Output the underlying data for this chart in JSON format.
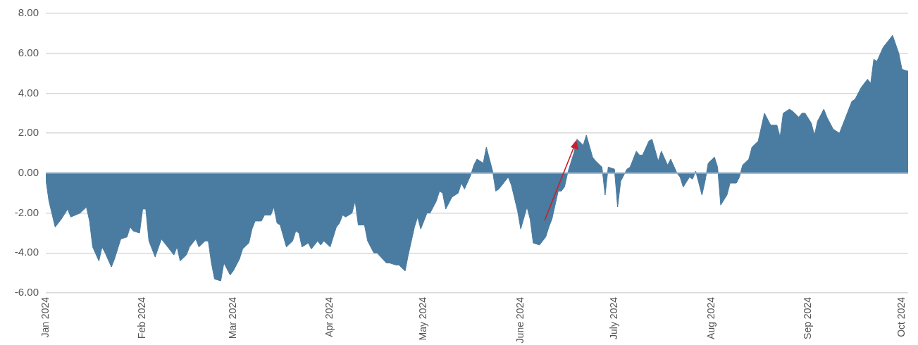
{
  "chart_data": {
    "type": "area",
    "color": "#4a7ba0",
    "x": [
      "2024-01-01",
      "2024-01-02",
      "2024-01-04",
      "2024-01-06",
      "2024-01-08",
      "2024-01-09",
      "2024-01-12",
      "2024-01-14",
      "2024-01-15",
      "2024-01-16",
      "2024-01-18",
      "2024-01-19",
      "2024-01-20",
      "2024-01-22",
      "2024-01-23",
      "2024-01-25",
      "2024-01-27",
      "2024-01-28",
      "2024-01-29",
      "2024-01-31",
      "2024-02-01",
      "2024-02-02",
      "2024-02-03",
      "2024-02-05",
      "2024-02-07",
      "2024-02-08",
      "2024-02-11",
      "2024-02-12",
      "2024-02-13",
      "2024-02-15",
      "2024-02-16",
      "2024-02-18",
      "2024-02-19",
      "2024-02-21",
      "2024-02-22",
      "2024-02-23",
      "2024-02-24",
      "2024-02-26",
      "2024-02-27",
      "2024-02-29",
      "2024-03-01",
      "2024-03-03",
      "2024-03-04",
      "2024-03-06",
      "2024-03-07",
      "2024-03-08",
      "2024-03-10",
      "2024-03-11",
      "2024-03-13",
      "2024-03-14",
      "2024-03-15",
      "2024-03-16",
      "2024-03-18",
      "2024-03-20",
      "2024-03-21",
      "2024-03-22",
      "2024-03-23",
      "2024-03-25",
      "2024-03-26",
      "2024-03-28",
      "2024-03-29",
      "2024-03-30",
      "2024-04-01",
      "2024-04-03",
      "2024-04-04",
      "2024-04-05",
      "2024-04-06",
      "2024-04-08",
      "2024-04-09",
      "2024-04-10",
      "2024-04-12",
      "2024-04-13",
      "2024-04-15",
      "2024-04-16",
      "2024-04-19",
      "2024-04-20",
      "2024-04-22",
      "2024-04-23",
      "2024-04-25",
      "2024-04-26",
      "2024-04-28",
      "2024-04-29",
      "2024-04-30",
      "2024-05-02",
      "2024-05-03",
      "2024-05-05",
      "2024-05-06",
      "2024-05-07",
      "2024-05-08",
      "2024-05-10",
      "2024-05-12",
      "2024-05-13",
      "2024-05-14",
      "2024-05-16",
      "2024-05-17",
      "2024-05-18",
      "2024-05-20",
      "2024-05-21",
      "2024-05-23",
      "2024-05-24",
      "2024-05-25",
      "2024-05-27",
      "2024-05-28",
      "2024-05-29",
      "2024-05-31",
      "2024-06-01",
      "2024-06-03",
      "2024-06-04",
      "2024-06-05",
      "2024-06-07",
      "2024-06-09",
      "2024-06-10",
      "2024-06-11",
      "2024-06-13",
      "2024-06-14",
      "2024-06-15",
      "2024-06-16",
      "2024-06-18",
      "2024-06-19",
      "2024-06-21",
      "2024-06-22",
      "2024-06-24",
      "2024-06-25",
      "2024-06-27",
      "2024-06-28",
      "2024-06-29",
      "2024-07-01",
      "2024-07-02",
      "2024-07-03",
      "2024-07-05",
      "2024-07-06",
      "2024-07-08",
      "2024-07-09",
      "2024-07-10",
      "2024-07-12",
      "2024-07-13",
      "2024-07-15",
      "2024-07-16",
      "2024-07-18",
      "2024-07-19",
      "2024-07-21",
      "2024-07-22",
      "2024-07-23",
      "2024-07-25",
      "2024-07-26",
      "2024-07-27",
      "2024-07-29",
      "2024-07-30",
      "2024-07-31",
      "2024-08-02",
      "2024-08-03",
      "2024-08-04",
      "2024-08-06",
      "2024-08-07",
      "2024-08-09",
      "2024-08-10",
      "2024-08-11",
      "2024-08-13",
      "2024-08-14",
      "2024-08-16",
      "2024-08-18",
      "2024-08-20",
      "2024-08-22",
      "2024-08-23",
      "2024-08-24",
      "2024-08-26",
      "2024-08-27",
      "2024-08-29",
      "2024-08-30",
      "2024-08-31",
      "2024-09-02",
      "2024-09-03",
      "2024-09-04",
      "2024-09-06",
      "2024-09-07",
      "2024-09-09",
      "2024-09-11",
      "2024-09-12",
      "2024-09-14",
      "2024-09-15",
      "2024-09-16",
      "2024-09-18",
      "2024-09-20",
      "2024-09-21",
      "2024-09-22",
      "2024-09-23",
      "2024-09-25",
      "2024-09-26",
      "2024-09-28",
      "2024-09-30",
      "2024-10-01",
      "2024-10-03"
    ],
    "values": [
      -0.3,
      -1.4,
      -2.7,
      -2.3,
      -1.8,
      -2.2,
      -2.0,
      -1.7,
      -2.4,
      -3.7,
      -4.4,
      -3.7,
      -4.0,
      -4.7,
      -4.3,
      -3.3,
      -3.2,
      -2.7,
      -2.9,
      -3.0,
      -1.8,
      -1.8,
      -3.4,
      -4.2,
      -3.3,
      -3.5,
      -4.1,
      -3.7,
      -4.4,
      -4.1,
      -3.7,
      -3.3,
      -3.7,
      -3.4,
      -3.4,
      -4.5,
      -5.3,
      -5.4,
      -4.5,
      -5.1,
      -4.9,
      -4.3,
      -3.8,
      -3.5,
      -2.8,
      -2.4,
      -2.4,
      -2.1,
      -2.1,
      -1.7,
      -2.5,
      -2.6,
      -3.7,
      -3.4,
      -2.9,
      -3.0,
      -3.7,
      -3.5,
      -3.8,
      -3.4,
      -3.6,
      -3.4,
      -3.7,
      -2.7,
      -2.5,
      -2.1,
      -2.2,
      -2.0,
      -1.4,
      -2.6,
      -2.6,
      -3.4,
      -4.0,
      -4.0,
      -4.5,
      -4.5,
      -4.6,
      -4.6,
      -4.9,
      -4.1,
      -2.7,
      -2.2,
      -2.8,
      -2.0,
      -2.0,
      -1.4,
      -0.9,
      -1.0,
      -1.8,
      -1.2,
      -1.0,
      -0.5,
      -0.8,
      -0.1,
      0.4,
      0.7,
      0.5,
      1.3,
      0.1,
      -0.9,
      -0.8,
      -0.4,
      -0.2,
      -0.6,
      -1.9,
      -2.8,
      -1.7,
      -2.3,
      -3.5,
      -3.6,
      -3.2,
      -2.7,
      -2.3,
      -0.9,
      -0.9,
      -0.7,
      0.0,
      1.0,
      1.7,
      1.4,
      1.9,
      0.8,
      0.6,
      0.3,
      -1.1,
      0.3,
      0.2,
      -1.7,
      -0.4,
      0.2,
      0.3,
      1.1,
      0.9,
      0.9,
      1.6,
      1.7,
      0.6,
      1.1,
      0.4,
      0.7,
      0.0,
      -0.2,
      -0.7,
      -0.2,
      -0.3,
      0.1,
      -1.1,
      -0.4,
      0.5,
      0.8,
      0.3,
      -1.6,
      -1.1,
      -0.5,
      -0.5,
      -0.2,
      0.4,
      0.7,
      1.3,
      1.6,
      3.0,
      2.4,
      2.4,
      1.8,
      3.0,
      3.2,
      3.1,
      2.8,
      3.0,
      3.0,
      2.5,
      1.9,
      2.6,
      3.2,
      2.8,
      2.2,
      2.0,
      2.4,
      3.2,
      3.6,
      3.7,
      4.3,
      4.7,
      4.5,
      5.7,
      5.6,
      6.3,
      6.5,
      6.9,
      6.0,
      5.2,
      5.1
    ],
    "xlim": [
      "2024-01-01",
      "2024-10-03"
    ],
    "xticks": [
      {
        "value": "2024-01-01",
        "label": "Jan 2024"
      },
      {
        "value": "2024-02-01",
        "label": "Feb 2024"
      },
      {
        "value": "2024-03-01",
        "label": "Mar 2024"
      },
      {
        "value": "2024-04-01",
        "label": "Apr 2024"
      },
      {
        "value": "2024-05-01",
        "label": "May 2024"
      },
      {
        "value": "2024-06-01",
        "label": "June 2024"
      },
      {
        "value": "2024-07-01",
        "label": "July 2024"
      },
      {
        "value": "2024-08-01",
        "label": "Aug 2024"
      },
      {
        "value": "2024-09-01",
        "label": "Sep 2024"
      },
      {
        "value": "2024-10-01",
        "label": "Oct 2024"
      }
    ],
    "ylim": [
      -6,
      8
    ],
    "yticks": [
      {
        "value": -6,
        "label": "-6.00"
      },
      {
        "value": -4,
        "label": "-4.00"
      },
      {
        "value": -2,
        "label": "-2.00"
      },
      {
        "value": 0,
        "label": "0.00"
      },
      {
        "value": 2,
        "label": "2.00"
      },
      {
        "value": 4,
        "label": "4.00"
      },
      {
        "value": 6,
        "label": "6.00"
      },
      {
        "value": 8,
        "label": "8.00"
      }
    ],
    "grid": "y",
    "ref_lines": [
      {
        "axis": "y",
        "value": 0,
        "color": "#8eaec8"
      }
    ]
  }
}
